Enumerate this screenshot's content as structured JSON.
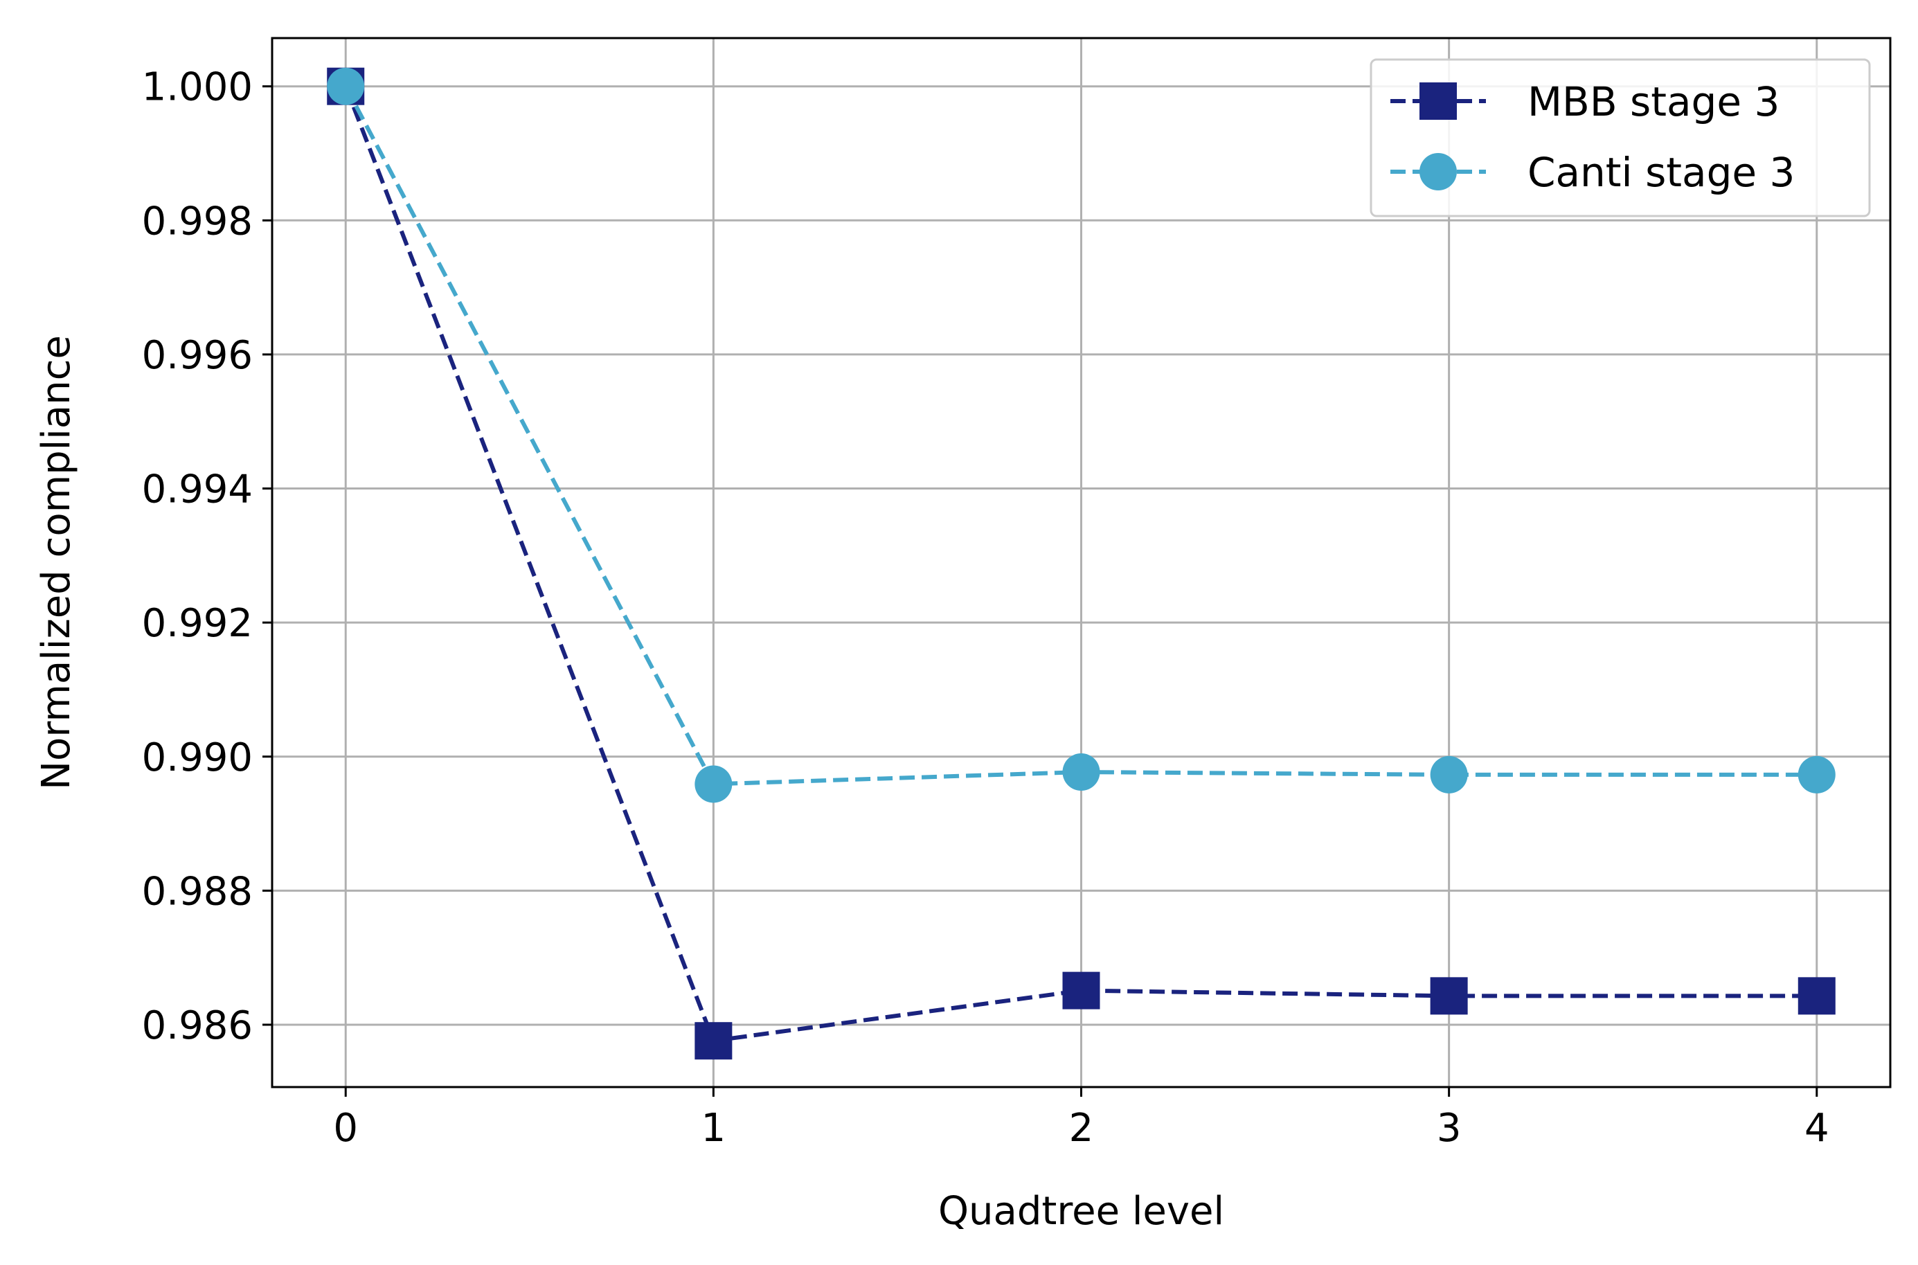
{
  "chart_data": {
    "type": "line",
    "title": "",
    "xlabel": "Quadtree level",
    "ylabel": "Normalized compliance",
    "x": [
      0,
      1,
      2,
      3,
      4
    ],
    "x_ticks": [
      0,
      1,
      2,
      3,
      4
    ],
    "x_tick_labels": [
      "0",
      "1",
      "2",
      "3",
      "4"
    ],
    "y_ticks": [
      0.986,
      0.988,
      0.99,
      0.992,
      0.994,
      0.996,
      0.998,
      1.0
    ],
    "y_tick_labels": [
      "0.986",
      "0.988",
      "0.990",
      "0.992",
      "0.994",
      "0.996",
      "0.998",
      "1.000"
    ],
    "xlim": [
      -0.2,
      4.2
    ],
    "ylim": [
      0.98507,
      1.00072
    ],
    "grid": true,
    "legend_position": "top-right",
    "series": [
      {
        "name": "MBB stage 3",
        "values": [
          1.0,
          0.98576,
          0.98651,
          0.98643,
          0.98643
        ],
        "color": "#1a237e",
        "marker": "square",
        "line_style": "dashed"
      },
      {
        "name": "Canti stage 3",
        "values": [
          1.0,
          0.98959,
          0.98977,
          0.98973,
          0.98973
        ],
        "color": "#45a8cc",
        "marker": "circle",
        "line_style": "dashed"
      }
    ]
  }
}
